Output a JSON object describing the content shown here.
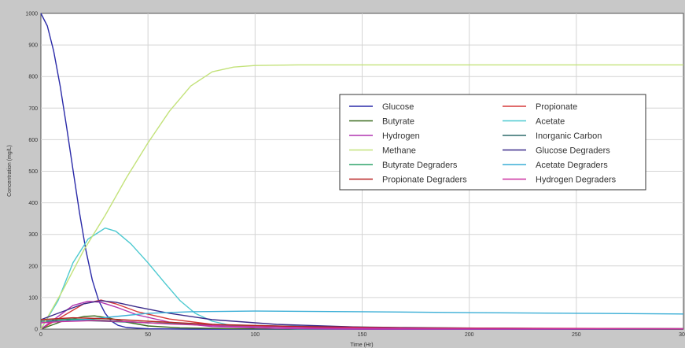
{
  "chart_data": {
    "type": "line",
    "xlabel": "Time (Hr)",
    "ylabel": "Concentration (mg/L)",
    "xlim": [
      0,
      300
    ],
    "ylim": [
      0,
      1000
    ],
    "xticks": [
      0,
      50,
      100,
      150,
      200,
      250,
      300
    ],
    "yticks": [
      0,
      100,
      200,
      300,
      400,
      500,
      600,
      700,
      800,
      900,
      1000
    ],
    "xtick_labels": [
      "0",
      "50",
      "100",
      "150",
      "200",
      "250",
      "300"
    ],
    "ytick_labels": [
      "0",
      "100",
      "200",
      "300",
      "400",
      "500",
      "600",
      "700",
      "800",
      "900",
      "1000"
    ],
    "grid": true,
    "legend_position": "upper-right",
    "legend_columns": 2,
    "series": [
      {
        "name": "Glucose",
        "color": "#2a2aa8",
        "points": [
          [
            0,
            1000
          ],
          [
            3,
            960
          ],
          [
            6,
            880
          ],
          [
            9,
            770
          ],
          [
            12,
            640
          ],
          [
            15,
            505
          ],
          [
            18,
            370
          ],
          [
            21,
            250
          ],
          [
            24,
            155
          ],
          [
            27,
            90
          ],
          [
            30,
            50
          ],
          [
            33,
            25
          ],
          [
            36,
            12
          ],
          [
            40,
            5
          ],
          [
            50,
            1
          ],
          [
            70,
            0
          ],
          [
            300,
            0
          ]
        ]
      },
      {
        "name": "Propionate",
        "color": "#d63a3a",
        "points": [
          [
            0,
            0
          ],
          [
            10,
            40
          ],
          [
            20,
            80
          ],
          [
            28,
            92
          ],
          [
            35,
            80
          ],
          [
            45,
            55
          ],
          [
            60,
            32
          ],
          [
            80,
            15
          ],
          [
            100,
            8
          ],
          [
            130,
            4
          ],
          [
            200,
            1
          ],
          [
            300,
            0
          ]
        ]
      },
      {
        "name": "Butyrate",
        "color": "#3a6b1e",
        "points": [
          [
            0,
            0
          ],
          [
            10,
            25
          ],
          [
            20,
            40
          ],
          [
            25,
            42
          ],
          [
            32,
            35
          ],
          [
            40,
            22
          ],
          [
            50,
            10
          ],
          [
            65,
            4
          ],
          [
            90,
            1
          ],
          [
            300,
            0
          ]
        ]
      },
      {
        "name": "Acetate",
        "color": "#4cc9d0",
        "points": [
          [
            0,
            0
          ],
          [
            8,
            90
          ],
          [
            15,
            210
          ],
          [
            22,
            285
          ],
          [
            30,
            320
          ],
          [
            35,
            310
          ],
          [
            42,
            270
          ],
          [
            50,
            210
          ],
          [
            58,
            145
          ],
          [
            65,
            90
          ],
          [
            72,
            50
          ],
          [
            80,
            25
          ],
          [
            90,
            10
          ],
          [
            100,
            4
          ],
          [
            120,
            1
          ],
          [
            300,
            0
          ]
        ]
      },
      {
        "name": "Hydrogen",
        "color": "#b035b0",
        "points": [
          [
            0,
            0
          ],
          [
            8,
            40
          ],
          [
            15,
            75
          ],
          [
            22,
            88
          ],
          [
            28,
            85
          ],
          [
            35,
            70
          ],
          [
            45,
            45
          ],
          [
            60,
            22
          ],
          [
            80,
            8
          ],
          [
            110,
            2
          ],
          [
            150,
            0
          ],
          [
            300,
            0
          ]
        ]
      },
      {
        "name": "Inorganic Carbon",
        "color": "#2e6b6b",
        "points": [
          [
            0,
            25
          ],
          [
            15,
            28
          ],
          [
            30,
            25
          ],
          [
            50,
            20
          ],
          [
            80,
            14
          ],
          [
            120,
            9
          ],
          [
            170,
            5
          ],
          [
            230,
            2
          ],
          [
            300,
            1
          ]
        ]
      },
      {
        "name": "Methane",
        "color": "#c3e27a",
        "points": [
          [
            0,
            0
          ],
          [
            10,
            120
          ],
          [
            20,
            250
          ],
          [
            30,
            360
          ],
          [
            40,
            480
          ],
          [
            50,
            590
          ],
          [
            60,
            690
          ],
          [
            70,
            770
          ],
          [
            80,
            815
          ],
          [
            90,
            830
          ],
          [
            100,
            835
          ],
          [
            120,
            837
          ],
          [
            300,
            837
          ]
        ]
      },
      {
        "name": "Glucose Degraders",
        "color": "#3a2a8a",
        "points": [
          [
            0,
            30
          ],
          [
            10,
            55
          ],
          [
            20,
            80
          ],
          [
            28,
            90
          ],
          [
            35,
            85
          ],
          [
            45,
            70
          ],
          [
            60,
            50
          ],
          [
            80,
            30
          ],
          [
            110,
            15
          ],
          [
            150,
            6
          ],
          [
            200,
            2
          ],
          [
            300,
            1
          ]
        ]
      },
      {
        "name": "Butyrate Degraders",
        "color": "#2ea36a",
        "points": [
          [
            0,
            30
          ],
          [
            15,
            32
          ],
          [
            30,
            28
          ],
          [
            50,
            20
          ],
          [
            80,
            12
          ],
          [
            120,
            6
          ],
          [
            170,
            3
          ],
          [
            300,
            1
          ]
        ]
      },
      {
        "name": "Acetate Degraders",
        "color": "#3aaed6",
        "points": [
          [
            0,
            20
          ],
          [
            20,
            30
          ],
          [
            35,
            40
          ],
          [
            50,
            50
          ],
          [
            70,
            55
          ],
          [
            100,
            57
          ],
          [
            150,
            55
          ],
          [
            200,
            52
          ],
          [
            250,
            50
          ],
          [
            300,
            48
          ]
        ]
      },
      {
        "name": "Propionate Degraders",
        "color": "#b82222",
        "points": [
          [
            0,
            30
          ],
          [
            15,
            36
          ],
          [
            30,
            33
          ],
          [
            50,
            25
          ],
          [
            80,
            15
          ],
          [
            120,
            8
          ],
          [
            170,
            4
          ],
          [
            300,
            1
          ]
        ]
      },
      {
        "name": "Hydrogen Degraders",
        "color": "#cc2fa0",
        "points": [
          [
            0,
            20
          ],
          [
            10,
            24
          ],
          [
            25,
            27
          ],
          [
            40,
            24
          ],
          [
            60,
            16
          ],
          [
            90,
            9
          ],
          [
            130,
            4
          ],
          [
            180,
            2
          ],
          [
            300,
            1
          ]
        ]
      }
    ],
    "legend_order": [
      [
        "Glucose",
        "Propionate"
      ],
      [
        "Butyrate",
        "Acetate"
      ],
      [
        "Hydrogen",
        "Inorganic Carbon"
      ],
      [
        "Methane",
        "Glucose Degraders"
      ],
      [
        "Butyrate Degraders",
        "Acetate Degraders"
      ],
      [
        "Propionate Degraders",
        "Hydrogen Degraders"
      ]
    ]
  }
}
